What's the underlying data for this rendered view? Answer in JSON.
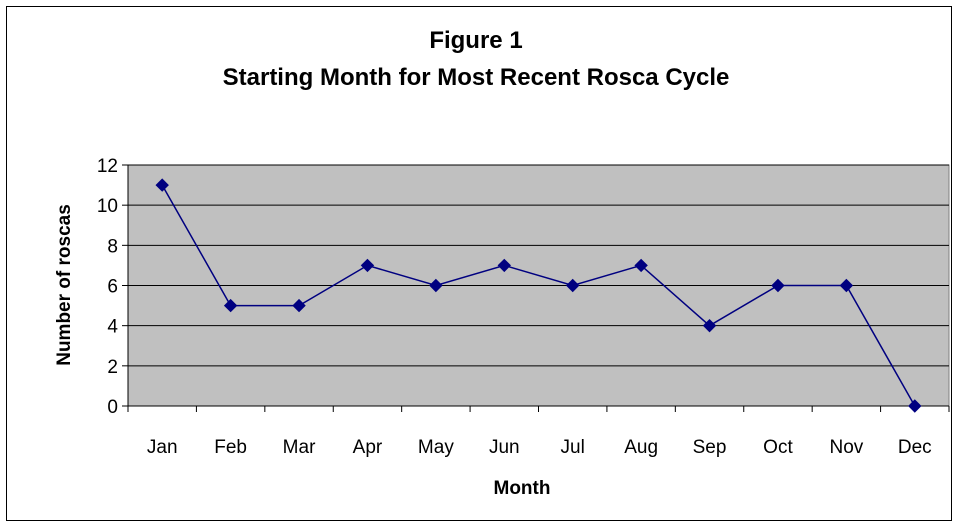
{
  "chart_data": {
    "type": "line",
    "title": "Figure 1",
    "subtitle": "Starting Month for Most Recent Rosca Cycle",
    "xlabel": "Month",
    "ylabel": "Number of roscas",
    "categories": [
      "Jan",
      "Feb",
      "Mar",
      "Apr",
      "May",
      "Jun",
      "Jul",
      "Aug",
      "Sep",
      "Oct",
      "Nov",
      "Dec"
    ],
    "series": [
      {
        "values": [
          11,
          5,
          5,
          7,
          6,
          7,
          6,
          7,
          4,
          6,
          6,
          0
        ]
      }
    ],
    "ylim": [
      0,
      12
    ],
    "yticks": [
      0,
      2,
      4,
      6,
      8,
      10,
      12
    ],
    "grid": true,
    "legend": "none",
    "colors": {
      "plot_background": "#c0c0c0",
      "line": "#000080",
      "marker": "#000080",
      "grid": "#000000"
    }
  }
}
